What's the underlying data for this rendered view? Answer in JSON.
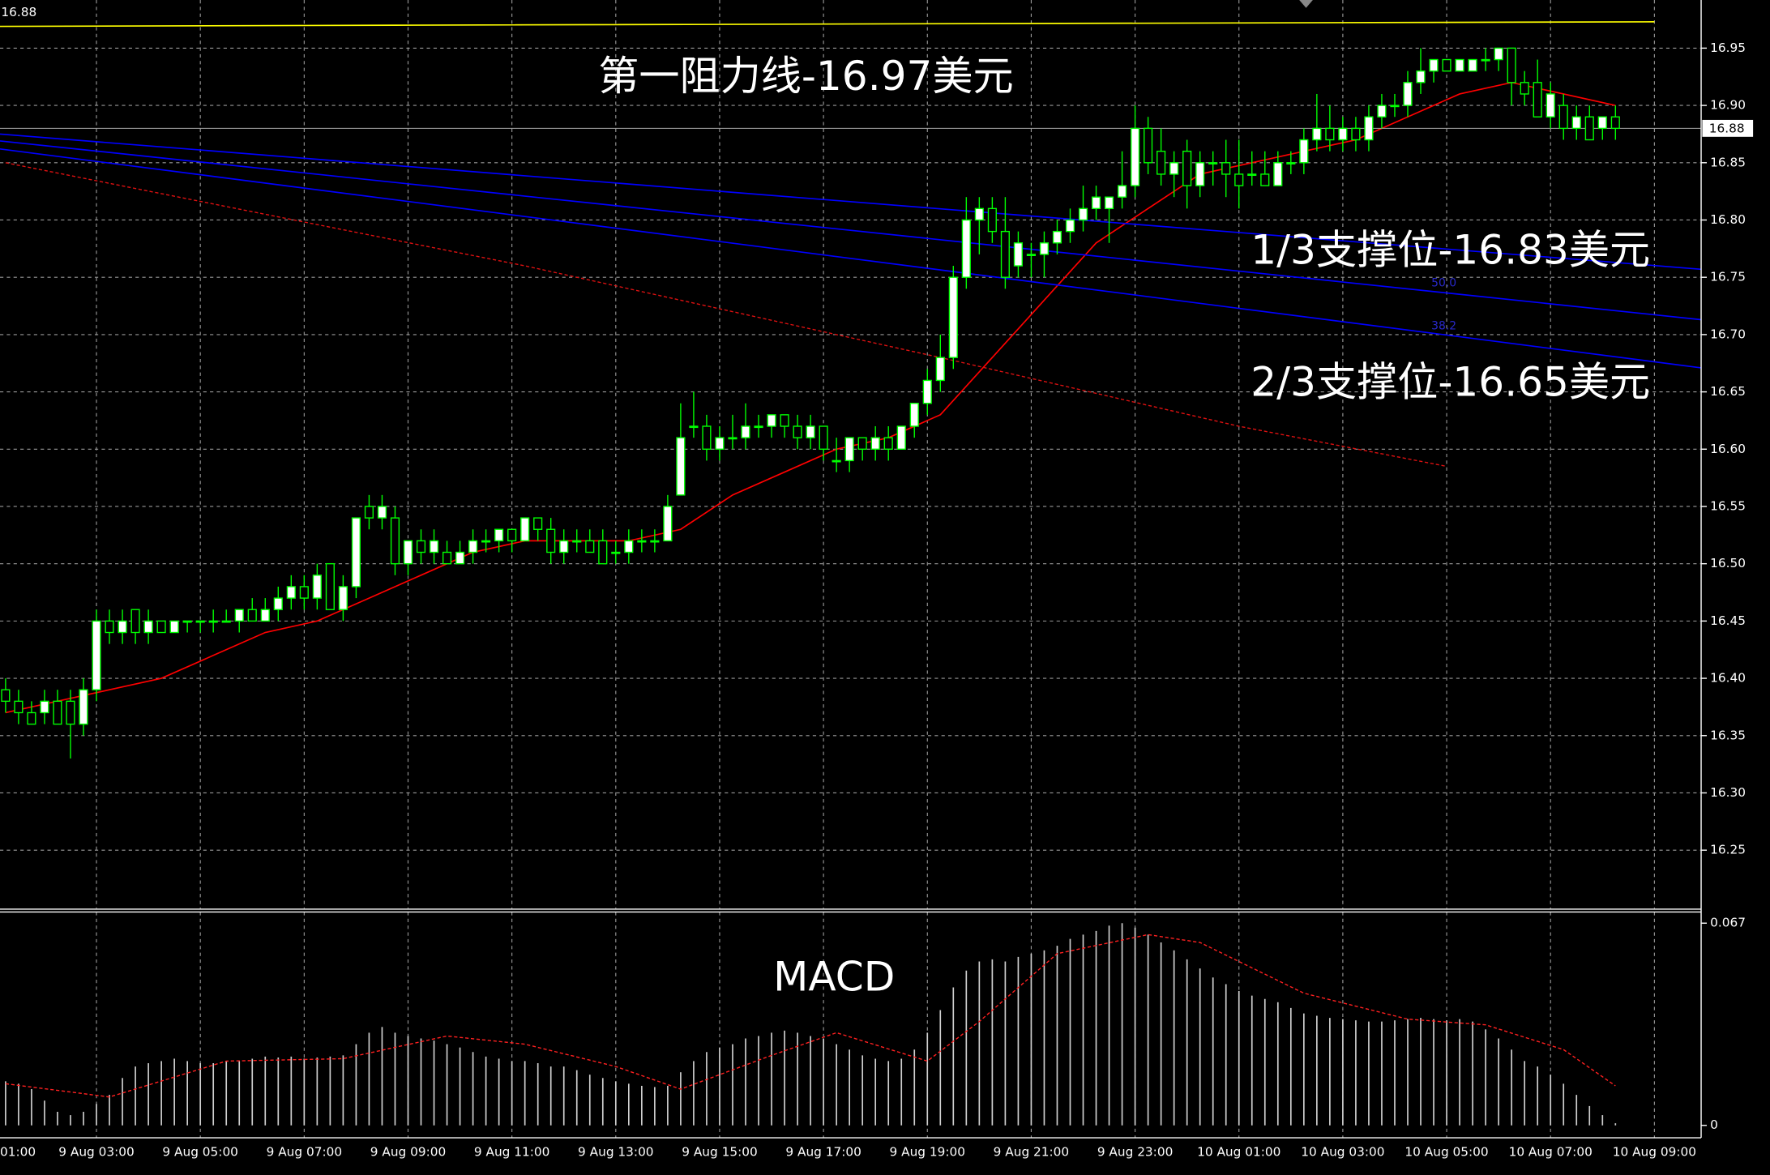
{
  "chart_data": [
    {
      "type": "candlestick",
      "last_price": 16.88,
      "ylim": [
        16.199,
        16.992
      ],
      "yticks": [
        16.25,
        {
          "value": 16.3,
          "label": "16.30"
        },
        16.35,
        {
          "value": 16.4,
          "label": "16.40"
        },
        16.45,
        {
          "value": 16.5,
          "label": "16.50"
        },
        16.55,
        {
          "value": 16.6,
          "label": "16.60"
        },
        16.65,
        {
          "value": 16.7,
          "label": "16.70"
        },
        16.75,
        {
          "value": 16.8,
          "label": "16.80"
        },
        16.85,
        {
          "value": 16.9,
          "label": "16.90"
        },
        16.95
      ],
      "xlim": [
        -0.43,
        130.6
      ],
      "grid": true,
      "up_color": "#ffffff",
      "down_color": "#000000",
      "wick_color": "#00ff00",
      "ohlc": [
        [
          16.39,
          16.4,
          16.37,
          16.38
        ],
        [
          16.38,
          16.39,
          16.36,
          16.37
        ],
        [
          16.37,
          16.38,
          16.36,
          16.36
        ],
        [
          16.37,
          16.39,
          16.36,
          16.38
        ],
        [
          16.38,
          16.39,
          16.36,
          16.36
        ],
        [
          16.38,
          16.39,
          16.33,
          16.36
        ],
        [
          16.36,
          16.4,
          16.35,
          16.39
        ],
        [
          16.39,
          16.46,
          16.38,
          16.45
        ],
        [
          16.45,
          16.46,
          16.43,
          16.44
        ],
        [
          16.44,
          16.46,
          16.43,
          16.45
        ],
        [
          16.46,
          16.46,
          16.43,
          16.44
        ],
        [
          16.44,
          16.46,
          16.43,
          16.45
        ],
        [
          16.45,
          16.45,
          16.44,
          16.44
        ],
        [
          16.44,
          16.45,
          16.44,
          16.45
        ],
        [
          16.45,
          16.45,
          16.44,
          16.45
        ],
        [
          16.45,
          16.45,
          16.44,
          16.45
        ],
        [
          16.45,
          16.46,
          16.44,
          16.45
        ],
        [
          16.45,
          16.46,
          16.45,
          16.45
        ],
        [
          16.45,
          16.46,
          16.44,
          16.46
        ],
        [
          16.46,
          16.47,
          16.45,
          16.45
        ],
        [
          16.45,
          16.47,
          16.45,
          16.46
        ],
        [
          16.46,
          16.48,
          16.45,
          16.47
        ],
        [
          16.47,
          16.49,
          16.46,
          16.48
        ],
        [
          16.48,
          16.49,
          16.46,
          16.47
        ],
        [
          16.47,
          16.5,
          16.46,
          16.49
        ],
        [
          16.5,
          16.5,
          16.46,
          16.46
        ],
        [
          16.46,
          16.49,
          16.45,
          16.48
        ],
        [
          16.48,
          16.54,
          16.47,
          16.54
        ],
        [
          16.55,
          16.56,
          16.53,
          16.54
        ],
        [
          16.54,
          16.56,
          16.53,
          16.55
        ],
        [
          16.54,
          16.55,
          16.49,
          16.5
        ],
        [
          16.5,
          16.52,
          16.49,
          16.52
        ],
        [
          16.52,
          16.53,
          16.5,
          16.51
        ],
        [
          16.51,
          16.53,
          16.5,
          16.52
        ],
        [
          16.51,
          16.52,
          16.5,
          16.5
        ],
        [
          16.5,
          16.52,
          16.5,
          16.51
        ],
        [
          16.51,
          16.53,
          16.5,
          16.52
        ],
        [
          16.52,
          16.53,
          16.51,
          16.52
        ],
        [
          16.52,
          16.53,
          16.51,
          16.53
        ],
        [
          16.53,
          16.53,
          16.51,
          16.52
        ],
        [
          16.52,
          16.54,
          16.52,
          16.54
        ],
        [
          16.54,
          16.54,
          16.52,
          16.53
        ],
        [
          16.53,
          16.54,
          16.5,
          16.51
        ],
        [
          16.51,
          16.53,
          16.5,
          16.52
        ],
        [
          16.52,
          16.53,
          16.51,
          16.52
        ],
        [
          16.52,
          16.53,
          16.51,
          16.51
        ],
        [
          16.52,
          16.53,
          16.5,
          16.5
        ],
        [
          16.51,
          16.52,
          16.5,
          16.51
        ],
        [
          16.51,
          16.53,
          16.5,
          16.52
        ],
        [
          16.52,
          16.53,
          16.51,
          16.52
        ],
        [
          16.52,
          16.53,
          16.51,
          16.52
        ],
        [
          16.52,
          16.56,
          16.52,
          16.55
        ],
        [
          16.56,
          16.64,
          16.56,
          16.61
        ],
        [
          16.62,
          16.65,
          16.61,
          16.62
        ],
        [
          16.62,
          16.63,
          16.59,
          16.6
        ],
        [
          16.6,
          16.62,
          16.59,
          16.61
        ],
        [
          16.61,
          16.63,
          16.6,
          16.61
        ],
        [
          16.61,
          16.64,
          16.6,
          16.62
        ],
        [
          16.62,
          16.63,
          16.61,
          16.62
        ],
        [
          16.62,
          16.63,
          16.61,
          16.63
        ],
        [
          16.63,
          16.63,
          16.61,
          16.62
        ],
        [
          16.62,
          16.63,
          16.6,
          16.61
        ],
        [
          16.61,
          16.63,
          16.6,
          16.62
        ],
        [
          16.62,
          16.62,
          16.59,
          16.6
        ],
        [
          16.59,
          16.61,
          16.58,
          16.59
        ],
        [
          16.59,
          16.61,
          16.58,
          16.61
        ],
        [
          16.61,
          16.61,
          16.59,
          16.6
        ],
        [
          16.6,
          16.62,
          16.59,
          16.61
        ],
        [
          16.61,
          16.62,
          16.59,
          16.6
        ],
        [
          16.6,
          16.62,
          16.6,
          16.62
        ],
        [
          16.62,
          16.64,
          16.61,
          16.64
        ],
        [
          16.64,
          16.67,
          16.63,
          16.66
        ],
        [
          16.66,
          16.7,
          16.65,
          16.68
        ],
        [
          16.68,
          16.76,
          16.67,
          16.75
        ],
        [
          16.75,
          16.82,
          16.74,
          16.8
        ],
        [
          16.8,
          16.82,
          16.77,
          16.81
        ],
        [
          16.81,
          16.82,
          16.78,
          16.79
        ],
        [
          16.79,
          16.82,
          16.74,
          16.75
        ],
        [
          16.76,
          16.79,
          16.75,
          16.78
        ],
        [
          16.77,
          16.78,
          16.75,
          16.77
        ],
        [
          16.77,
          16.79,
          16.75,
          16.78
        ],
        [
          16.78,
          16.8,
          16.77,
          16.79
        ],
        [
          16.79,
          16.81,
          16.78,
          16.8
        ],
        [
          16.8,
          16.83,
          16.79,
          16.81
        ],
        [
          16.81,
          16.83,
          16.8,
          16.82
        ],
        [
          16.81,
          16.82,
          16.78,
          16.82
        ],
        [
          16.82,
          16.86,
          16.81,
          16.83
        ],
        [
          16.83,
          16.9,
          16.82,
          16.88
        ],
        [
          16.88,
          16.89,
          16.84,
          16.85
        ],
        [
          16.86,
          16.88,
          16.83,
          16.84
        ],
        [
          16.84,
          16.86,
          16.82,
          16.85
        ],
        [
          16.86,
          16.87,
          16.81,
          16.83
        ],
        [
          16.83,
          16.86,
          16.82,
          16.85
        ],
        [
          16.85,
          16.86,
          16.83,
          16.85
        ],
        [
          16.85,
          16.87,
          16.82,
          16.84
        ],
        [
          16.84,
          16.87,
          16.81,
          16.83
        ],
        [
          16.84,
          16.86,
          16.83,
          16.84
        ],
        [
          16.84,
          16.86,
          16.83,
          16.83
        ],
        [
          16.83,
          16.86,
          16.83,
          16.85
        ],
        [
          16.85,
          16.86,
          16.84,
          16.85
        ],
        [
          16.85,
          16.88,
          16.84,
          16.87
        ],
        [
          16.87,
          16.91,
          16.86,
          16.88
        ],
        [
          16.88,
          16.9,
          16.86,
          16.87
        ],
        [
          16.87,
          16.89,
          16.86,
          16.88
        ],
        [
          16.88,
          16.89,
          16.86,
          16.87
        ],
        [
          16.87,
          16.9,
          16.86,
          16.89
        ],
        [
          16.89,
          16.91,
          16.88,
          16.9
        ],
        [
          16.9,
          16.91,
          16.89,
          16.9
        ],
        [
          16.9,
          16.93,
          16.89,
          16.92
        ],
        [
          16.92,
          16.95,
          16.91,
          16.93
        ],
        [
          16.93,
          16.94,
          16.92,
          16.94
        ],
        [
          16.94,
          16.94,
          16.93,
          16.93
        ],
        [
          16.93,
          16.94,
          16.93,
          16.94
        ],
        [
          16.93,
          16.94,
          16.93,
          16.94
        ],
        [
          16.94,
          16.95,
          16.93,
          16.94
        ],
        [
          16.94,
          16.95,
          16.93,
          16.95
        ],
        [
          16.95,
          16.95,
          16.9,
          16.92
        ],
        [
          16.92,
          16.93,
          16.9,
          16.91
        ],
        [
          16.92,
          16.94,
          16.89,
          16.89
        ],
        [
          16.89,
          16.92,
          16.88,
          16.91
        ],
        [
          16.9,
          16.91,
          16.87,
          16.88
        ],
        [
          16.88,
          16.9,
          16.87,
          16.89
        ],
        [
          16.89,
          16.9,
          16.87,
          16.87
        ],
        [
          16.88,
          16.89,
          16.87,
          16.89
        ],
        [
          16.89,
          16.9,
          16.87,
          16.88
        ]
      ],
      "series": [
        {
          "color": "#ff0000",
          "style": "solid",
          "x": [
            0,
            4,
            8,
            12,
            16,
            20,
            24,
            28,
            32,
            36,
            40,
            44,
            48,
            52,
            56,
            60,
            64,
            68,
            72,
            76,
            80,
            84,
            88,
            92,
            96,
            100,
            104,
            108,
            112,
            116,
            120,
            124
          ],
          "values": [
            16.37,
            16.38,
            16.39,
            16.4,
            16.42,
            16.44,
            16.45,
            16.47,
            16.49,
            16.51,
            16.52,
            16.52,
            16.52,
            16.53,
            16.56,
            16.58,
            16.6,
            16.61,
            16.63,
            16.68,
            16.73,
            16.78,
            16.81,
            16.84,
            16.85,
            16.86,
            16.87,
            16.89,
            16.91,
            16.92,
            16.91,
            16.9
          ]
        },
        {
          "color": "#dd1111",
          "style": "dashed",
          "x": [
            0,
            40,
            72,
            95,
            111
          ],
          "values": [
            16.85,
            16.76,
            16.68,
            16.62,
            16.585
          ]
        },
        {
          "color": "#0000ff",
          "style": "solid",
          "x": [
            -0.43,
            130.6
          ],
          "values": [
            16.875,
            16.757
          ]
        },
        {
          "color": "#0000ff",
          "style": "solid",
          "x": [
            -0.43,
            130.6
          ],
          "values": [
            16.869,
            16.713
          ]
        },
        {
          "color": "#0000ff",
          "style": "solid",
          "x": [
            -0.43,
            130.6
          ],
          "values": [
            16.862,
            16.671
          ]
        },
        {
          "color": "#ffff00",
          "style": "solid",
          "x": [
            -0.43,
            30,
            95,
            127
          ],
          "values": [
            16.969,
            16.97,
            16.972,
            16.973
          ]
        }
      ],
      "annotations": [
        "第一阻力线-16.97美元",
        "1/3支撑位-16.83美元",
        "2/3支撑位-16.65美元",
        "50.0",
        "38.2"
      ]
    },
    {
      "type": "macd",
      "title": "MACD",
      "ylim": [
        -0.0041,
        0.0707
      ],
      "yticks": [
        0,
        0.067
      ],
      "xlim": [
        -0.43,
        130.6
      ],
      "xticks": [
        {
          "value": -1,
          "label": "01:00"
        },
        {
          "value": 7,
          "label": "9 Aug 03:00"
        },
        {
          "value": 15,
          "label": "9 Aug 05:00"
        },
        {
          "value": 23,
          "label": "9 Aug 07:00"
        },
        {
          "value": 31,
          "label": "9 Aug 09:00"
        },
        {
          "value": 39,
          "label": "9 Aug 11:00"
        },
        {
          "value": 47,
          "label": "9 Aug 13:00"
        },
        {
          "value": 55,
          "label": "9 Aug 15:00"
        },
        {
          "value": 63,
          "label": "9 Aug 17:00"
        },
        {
          "value": 71,
          "label": "9 Aug 19:00"
        },
        {
          "value": 79,
          "label": "9 Aug 21:00"
        },
        {
          "value": 87,
          "label": "9 Aug 23:00"
        },
        {
          "value": 95,
          "label": "10 Aug 01:00"
        },
        {
          "value": 103,
          "label": "10 Aug 03:00"
        },
        {
          "value": 111,
          "label": "10 Aug 05:00"
        },
        {
          "value": 119,
          "label": "10 Aug 07:00"
        },
        {
          "value": 127,
          "label": "10 Aug 09:00"
        }
      ],
      "histogram_color": "#d0d0d0",
      "histogram": [
        0.0146,
        0.0138,
        0.012,
        0.0082,
        0.0045,
        0.0034,
        0.0045,
        0.0071,
        0.0101,
        0.0157,
        0.0195,
        0.0206,
        0.0213,
        0.0221,
        0.0213,
        0.0206,
        0.0206,
        0.0213,
        0.0213,
        0.0221,
        0.0228,
        0.0225,
        0.0228,
        0.0221,
        0.0225,
        0.0228,
        0.0232,
        0.0269,
        0.0307,
        0.0326,
        0.0307,
        0.0296,
        0.0288,
        0.0281,
        0.0269,
        0.0258,
        0.0243,
        0.0228,
        0.0221,
        0.0213,
        0.0213,
        0.0206,
        0.0195,
        0.0195,
        0.0183,
        0.0168,
        0.0157,
        0.0146,
        0.0138,
        0.0131,
        0.0127,
        0.0131,
        0.0176,
        0.0213,
        0.0243,
        0.0258,
        0.0269,
        0.0288,
        0.0296,
        0.0307,
        0.0314,
        0.0307,
        0.0296,
        0.0288,
        0.0269,
        0.0251,
        0.0232,
        0.0221,
        0.0213,
        0.0221,
        0.0251,
        0.0307,
        0.0382,
        0.0457,
        0.0513,
        0.0543,
        0.055,
        0.0543,
        0.0558,
        0.0569,
        0.058,
        0.0595,
        0.0618,
        0.0632,
        0.0644,
        0.0662,
        0.067,
        0.0655,
        0.0632,
        0.0606,
        0.058,
        0.055,
        0.052,
        0.049,
        0.0468,
        0.0445,
        0.043,
        0.0419,
        0.0408,
        0.0389,
        0.0371,
        0.0363,
        0.0356,
        0.0352,
        0.0348,
        0.0344,
        0.0344,
        0.0348,
        0.0352,
        0.0356,
        0.0352,
        0.0348,
        0.0352,
        0.0344,
        0.0318,
        0.0288,
        0.0251,
        0.0213,
        0.0195,
        0.0168,
        0.0138,
        0.0101,
        0.0064,
        0.0034,
        0.0007
      ],
      "signal": {
        "color": "#ff2020",
        "style": "dashed",
        "x": [
          0,
          8,
          17,
          26,
          34,
          40,
          47,
          52,
          59,
          64,
          71,
          75,
          81,
          88,
          92,
          100,
          108,
          114,
          120,
          124
        ],
        "values": [
          0.0138,
          0.0094,
          0.0213,
          0.0221,
          0.0296,
          0.0269,
          0.0195,
          0.012,
          0.0232,
          0.0307,
          0.0213,
          0.0344,
          0.0569,
          0.0632,
          0.0606,
          0.0438,
          0.0352,
          0.0333,
          0.0251,
          0.0131
        ]
      }
    }
  ]
}
